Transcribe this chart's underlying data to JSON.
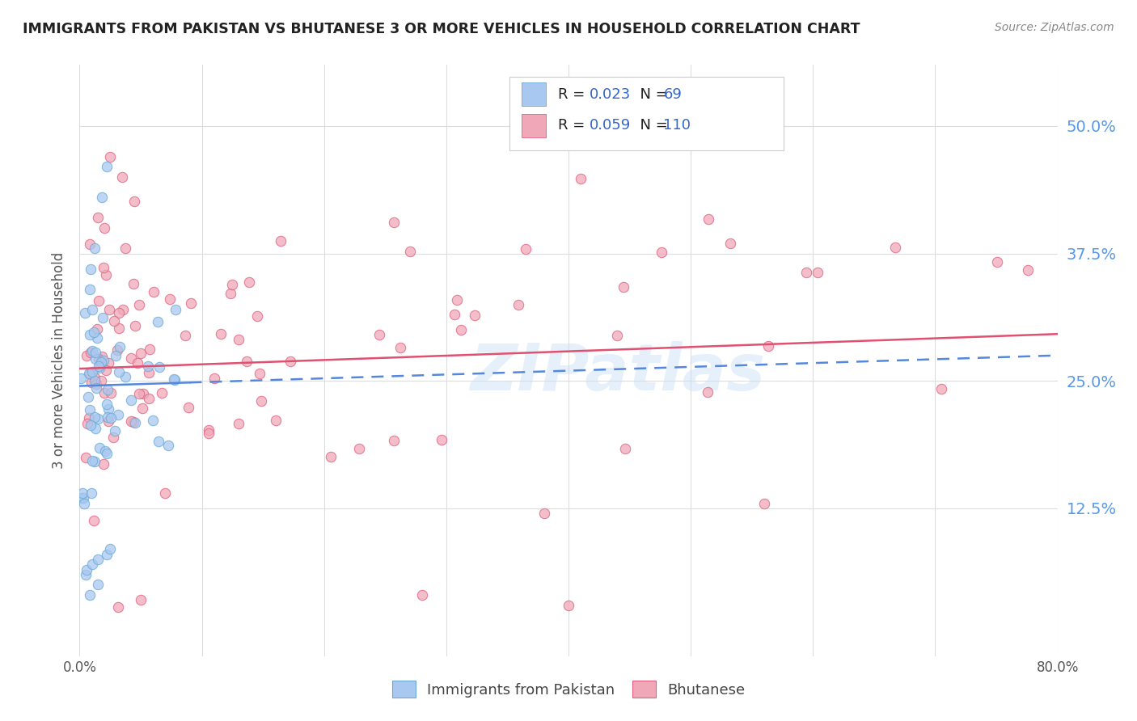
{
  "title": "IMMIGRANTS FROM PAKISTAN VS BHUTANESE 3 OR MORE VEHICLES IN HOUSEHOLD CORRELATION CHART",
  "source": "Source: ZipAtlas.com",
  "ylabel": "3 or more Vehicles in Household",
  "ytick_labels": [
    "12.5%",
    "25.0%",
    "37.5%",
    "50.0%"
  ],
  "ytick_values": [
    0.125,
    0.25,
    0.375,
    0.5
  ],
  "xlim": [
    0.0,
    0.8
  ],
  "ylim": [
    -0.02,
    0.56
  ],
  "pakistan_color": "#a8c8f0",
  "pakistan_edge": "#6aaad4",
  "bhutan_color": "#f0a8b8",
  "bhutan_edge": "#e06080",
  "pakistan_trend_color": "#5588dd",
  "bhutan_trend_color": "#e05070",
  "watermark": "ZIPatlas",
  "background_color": "#ffffff",
  "grid_color": "#dddddd",
  "R_pakistan": "0.023",
  "N_pakistan": "69",
  "R_bhutan": "0.059",
  "N_bhutan": "110"
}
